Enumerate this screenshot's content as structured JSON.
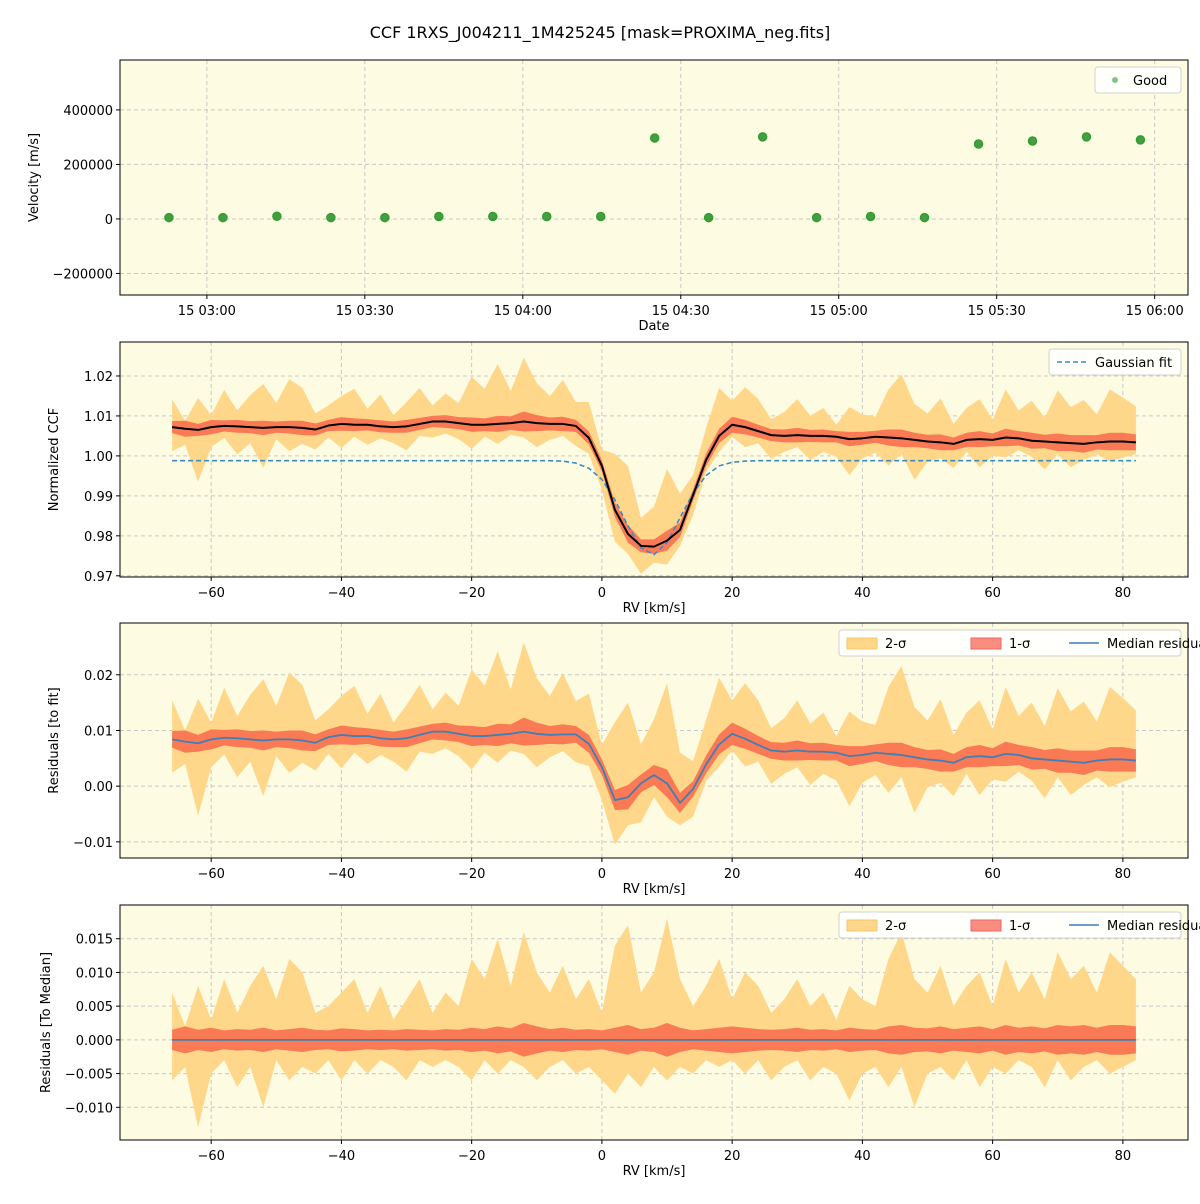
{
  "title": "CCF 1RXS_J004211_1M425245 [mask=PROXIMA_neg.fits]",
  "colors": {
    "background": "#fdfbe2",
    "sigma2": "#fed78a",
    "sigma1": "#fa7a55",
    "median": "#000000",
    "gaussian": "#3a8cc4",
    "median_residual": "#3f7fb5",
    "good": "#2ca02c"
  },
  "chart_data": [
    {
      "type": "scatter",
      "xlabel": "Date",
      "ylabel": "Velocity [m/s]",
      "xlim": [
        "15 02:43:30",
        "15 06:06:20"
      ],
      "ylim": [
        -279000,
        583000
      ],
      "grid": true,
      "legend": {
        "placement": "top-right",
        "entries": [
          "Good"
        ]
      },
      "xticks": [
        [
          "15 03:00",
          "03:00"
        ],
        [
          "15 03:30",
          "03:30"
        ],
        [
          "15 04:00",
          "04:00"
        ],
        [
          "15 04:30",
          "04:30"
        ],
        [
          "15 05:00",
          "05:00"
        ],
        [
          "15 05:30",
          "05:30"
        ],
        [
          "15 06:00",
          "06:00"
        ]
      ],
      "yticks": [
        [
          400000,
          "400000"
        ],
        [
          200000,
          "200000"
        ],
        [
          0,
          "0"
        ],
        [
          -200000,
          "−200000"
        ]
      ],
      "series": [
        {
          "name": "Good",
          "x": [
            "02:52:48",
            "03:03:03",
            "03:13:18",
            "03:23:33",
            "03:33:48",
            "03:44:03",
            "03:54:18",
            "04:04:33",
            "04:14:48",
            "04:25:03",
            "04:35:18",
            "04:45:33",
            "04:55:48",
            "05:06:03",
            "05:16:18",
            "05:26:33",
            "05:36:48",
            "05:47:03",
            "05:57:18"
          ],
          "y": [
            5000,
            5000,
            10000,
            5000,
            5000,
            9000,
            9000,
            9000,
            9000,
            297000,
            5000,
            301000,
            5000,
            9000,
            5000,
            275000,
            286000,
            301000,
            290000
          ]
        }
      ]
    },
    {
      "type": "line",
      "xlabel": "RV [km/s]",
      "ylabel": "Normalized CCF",
      "xlim": [
        -74,
        90
      ],
      "ylim": [
        0.9697,
        1.0285
      ],
      "grid": true,
      "legend": {
        "placement": "top-right",
        "entries": [
          "Gaussian fit"
        ]
      },
      "xticks": [
        [
          -60,
          "−60"
        ],
        [
          -40,
          "−40"
        ],
        [
          -20,
          "−20"
        ],
        [
          0,
          "0"
        ],
        [
          20,
          "20"
        ],
        [
          40,
          "40"
        ],
        [
          60,
          "60"
        ],
        [
          80,
          "80"
        ]
      ],
      "yticks": [
        [
          1.02,
          "1.02"
        ],
        [
          1.01,
          "1.01"
        ],
        [
          1.0,
          "1.00"
        ],
        [
          0.99,
          "0.99"
        ],
        [
          0.98,
          "0.98"
        ],
        [
          0.97,
          "0.97"
        ]
      ],
      "median": [
        1.0072,
        1.0068,
        1.0065,
        1.0072,
        1.0075,
        1.0074,
        1.0072,
        1.007,
        1.0072,
        1.0072,
        1.007,
        1.0066,
        1.0076,
        1.008,
        1.0078,
        1.0078,
        1.0074,
        1.0072,
        1.0074,
        1.008,
        1.0086,
        1.0086,
        1.0082,
        1.0078,
        1.0078,
        1.008,
        1.0082,
        1.0086,
        1.0082,
        1.008,
        1.008,
        1.0075,
        1.0045,
        0.9975,
        0.9865,
        0.9805,
        0.9775,
        0.9773,
        0.9788,
        0.9815,
        0.9902,
        0.999,
        1.005,
        1.0078,
        1.0072,
        1.0062,
        1.0052,
        1.005,
        1.0052,
        1.005,
        1.005,
        1.0048,
        1.0042,
        1.0044,
        1.0048,
        1.0046,
        1.0044,
        1.004,
        1.0036,
        1.0034,
        1.003,
        1.004,
        1.0042,
        1.004,
        1.0046,
        1.0044,
        1.0038,
        1.0036,
        1.0034,
        1.0032,
        1.003,
        1.0034,
        1.0036,
        1.0036,
        1.0034
      ],
      "gaussian_fit": [
        0.9988,
        0.9988,
        0.9988,
        0.9988,
        0.9988,
        0.9988,
        0.9988,
        0.9988,
        0.9988,
        0.9988,
        0.9988,
        0.9988,
        0.9988,
        0.9988,
        0.9988,
        0.9988,
        0.9988,
        0.9988,
        0.9988,
        0.9988,
        0.9988,
        0.9988,
        0.9988,
        0.9988,
        0.9988,
        0.9988,
        0.9988,
        0.9988,
        0.9988,
        0.9988,
        0.9987,
        0.9982,
        0.9969,
        0.9941,
        0.989,
        0.9825,
        0.977,
        0.9753,
        0.9783,
        0.9845,
        0.9907,
        0.9951,
        0.9975,
        0.9984,
        0.9987,
        0.9988,
        0.9988,
        0.9988,
        0.9988,
        0.9988,
        0.9988,
        0.9988,
        0.9988,
        0.9988,
        0.9988,
        0.9988,
        0.9988,
        0.9988,
        0.9988,
        0.9988,
        0.9988,
        0.9988,
        0.9988,
        0.9988,
        0.9988,
        0.9988,
        0.9988,
        0.9988,
        0.9988,
        0.9988,
        0.9988,
        0.9988,
        0.9988,
        0.9988,
        0.9988
      ]
    },
    {
      "type": "line",
      "xlabel": "RV [km/s]",
      "ylabel": "Residuals [to fit]",
      "xlim": [
        -74,
        90
      ],
      "ylim": [
        -0.0129,
        0.0293
      ],
      "grid": true,
      "legend": {
        "placement": "top-right",
        "entries": [
          "2-σ",
          "1-σ",
          "Median residual"
        ]
      },
      "xticks": [
        [
          -60,
          "−60"
        ],
        [
          -40,
          "−40"
        ],
        [
          -20,
          "−20"
        ],
        [
          0,
          "0"
        ],
        [
          20,
          "20"
        ],
        [
          40,
          "40"
        ],
        [
          60,
          "60"
        ],
        [
          80,
          "80"
        ]
      ],
      "yticks": [
        [
          0.02,
          "0.02"
        ],
        [
          0.01,
          "0.01"
        ],
        [
          0.0,
          "0.00"
        ],
        [
          -0.01,
          "−0.01"
        ]
      ],
      "median_residual": [
        0.0084,
        0.008,
        0.0077,
        0.0084,
        0.0087,
        0.0086,
        0.0084,
        0.0082,
        0.0084,
        0.0084,
        0.0082,
        0.0078,
        0.0088,
        0.0092,
        0.009,
        0.009,
        0.0086,
        0.0084,
        0.0086,
        0.0092,
        0.0098,
        0.0098,
        0.0094,
        0.009,
        0.009,
        0.0092,
        0.0094,
        0.0098,
        0.0094,
        0.0092,
        0.0093,
        0.0093,
        0.0076,
        0.0034,
        -0.0025,
        -0.002,
        0.0005,
        0.002,
        0.0005,
        -0.003,
        -0.0005,
        0.0039,
        0.0075,
        0.0094,
        0.0085,
        0.0074,
        0.0064,
        0.0062,
        0.0064,
        0.0062,
        0.0062,
        0.006,
        0.0054,
        0.0056,
        0.006,
        0.0058,
        0.0056,
        0.0052,
        0.0048,
        0.0046,
        0.0042,
        0.0052,
        0.0054,
        0.0052,
        0.0058,
        0.0056,
        0.005,
        0.0048,
        0.0046,
        0.0044,
        0.0042,
        0.0046,
        0.0048,
        0.0048,
        0.0046
      ]
    },
    {
      "type": "area",
      "xlabel": "RV [km/s]",
      "ylabel": "Residuals [To Median]",
      "xlim": [
        -74,
        90
      ],
      "ylim": [
        -0.01485,
        0.02
      ],
      "grid": true,
      "legend": {
        "placement": "top-right",
        "entries": [
          "2-σ",
          "1-σ",
          "Median residual"
        ]
      },
      "xticks": [
        [
          -60,
          "−60"
        ],
        [
          -40,
          "−40"
        ],
        [
          -20,
          "−20"
        ],
        [
          0,
          "0"
        ],
        [
          20,
          "20"
        ],
        [
          40,
          "40"
        ],
        [
          60,
          "60"
        ],
        [
          80,
          "80"
        ]
      ],
      "yticks": [
        [
          0.015,
          "0.015"
        ],
        [
          0.01,
          "0.010"
        ],
        [
          0.005,
          "0.005"
        ],
        [
          0.0,
          "0.000"
        ],
        [
          -0.005,
          "−0.005"
        ],
        [
          -0.01,
          "−0.010"
        ]
      ],
      "rv": [
        -66,
        -64,
        -62,
        -60,
        -58,
        -56,
        -54,
        -52,
        -50,
        -48,
        -46,
        -44,
        -42,
        -40,
        -38,
        -36,
        -34,
        -32,
        -30,
        -28,
        -26,
        -24,
        -22,
        -20,
        -18,
        -16,
        -14,
        -12,
        -10,
        -8,
        -6,
        -4,
        -2,
        0,
        2,
        4,
        6,
        8,
        10,
        12,
        14,
        16,
        18,
        20,
        22,
        24,
        26,
        28,
        30,
        32,
        34,
        36,
        38,
        40,
        42,
        44,
        46,
        48,
        50,
        52,
        54,
        56,
        58,
        60,
        62,
        64,
        66,
        68,
        70,
        72,
        74,
        76,
        78,
        80,
        82
      ],
      "sigma2_upper": [
        0.007,
        0.002,
        0.008,
        0.003,
        0.009,
        0.004,
        0.008,
        0.011,
        0.006,
        0.012,
        0.01,
        0.004,
        0.005,
        0.007,
        0.009,
        0.004,
        0.008,
        0.003,
        0.006,
        0.009,
        0.004,
        0.007,
        0.005,
        0.012,
        0.009,
        0.015,
        0.008,
        0.016,
        0.01,
        0.007,
        0.011,
        0.006,
        0.009,
        0.004,
        0.014,
        0.017,
        0.007,
        0.01,
        0.018,
        0.009,
        0.005,
        0.008,
        0.012,
        0.006,
        0.01,
        0.008,
        0.004,
        0.006,
        0.009,
        0.005,
        0.007,
        0.003,
        0.008,
        0.006,
        0.005,
        0.012,
        0.016,
        0.009,
        0.007,
        0.011,
        0.005,
        0.008,
        0.01,
        0.005,
        0.012,
        0.007,
        0.01,
        0.006,
        0.013,
        0.009,
        0.011,
        0.007,
        0.013,
        0.011,
        0.009
      ],
      "sigma2_lower": [
        -0.006,
        -0.004,
        -0.013,
        -0.005,
        -0.003,
        -0.007,
        -0.004,
        -0.01,
        -0.003,
        -0.006,
        -0.004,
        -0.005,
        -0.003,
        -0.006,
        -0.003,
        -0.005,
        -0.003,
        -0.004,
        -0.006,
        -0.003,
        -0.004,
        -0.003,
        -0.004,
        -0.006,
        -0.003,
        -0.005,
        -0.003,
        -0.004,
        -0.006,
        -0.004,
        -0.003,
        -0.005,
        -0.004,
        -0.006,
        -0.008,
        -0.005,
        -0.007,
        -0.004,
        -0.006,
        -0.004,
        -0.005,
        -0.003,
        -0.004,
        -0.003,
        -0.005,
        -0.003,
        -0.006,
        -0.004,
        -0.003,
        -0.006,
        -0.004,
        -0.005,
        -0.009,
        -0.005,
        -0.004,
        -0.007,
        -0.004,
        -0.01,
        -0.005,
        -0.004,
        -0.006,
        -0.003,
        -0.007,
        -0.004,
        -0.005,
        -0.003,
        -0.004,
        -0.007,
        -0.003,
        -0.006,
        -0.004,
        -0.003,
        -0.005,
        -0.004,
        -0.003
      ],
      "sigma1": [
        0.0015,
        0.002,
        0.0015,
        0.0018,
        0.0014,
        0.0016,
        0.0015,
        0.0018,
        0.0014,
        0.0016,
        0.0018,
        0.0015,
        0.0014,
        0.0017,
        0.0016,
        0.0014,
        0.0015,
        0.0014,
        0.0016,
        0.0015,
        0.0014,
        0.0016,
        0.0015,
        0.0018,
        0.0016,
        0.002,
        0.0017,
        0.0025,
        0.002,
        0.0016,
        0.0018,
        0.0015,
        0.0016,
        0.0014,
        0.0018,
        0.0022,
        0.0016,
        0.0018,
        0.0025,
        0.0018,
        0.0014,
        0.0016,
        0.0018,
        0.002,
        0.0018,
        0.0016,
        0.0015,
        0.0016,
        0.0018,
        0.0015,
        0.0016,
        0.0014,
        0.0018,
        0.0016,
        0.0015,
        0.002,
        0.0022,
        0.0018,
        0.0017,
        0.002,
        0.0016,
        0.0018,
        0.002,
        0.0016,
        0.0022,
        0.0018,
        0.002,
        0.0017,
        0.0022,
        0.002,
        0.0022,
        0.0018,
        0.0022,
        0.0022,
        0.002
      ],
      "median_residual": 0.0
    }
  ]
}
